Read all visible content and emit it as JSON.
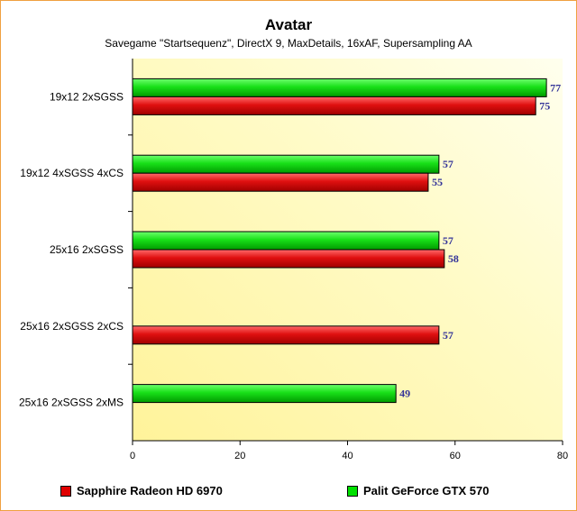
{
  "chart_data": {
    "type": "bar",
    "orientation": "horizontal",
    "title": "Avatar",
    "subtitle": "Savegame \"Startsequenz\", DirectX 9, MaxDetails, 16xAF, Supersampling AA",
    "categories": [
      "19x12 2xSGSS",
      "19x12 4xSGSS 4xCS",
      "25x16 2xSGSS",
      "25x16 2xSGSS 2xCS",
      "25x16 2xSGSS 2xMS"
    ],
    "series": [
      {
        "name": "Palit GeForce GTX 570",
        "color": "#00e000",
        "values": [
          77,
          57,
          57,
          null,
          49
        ]
      },
      {
        "name": "Sapphire Radeon HD 6970",
        "color": "#e00000",
        "values": [
          75,
          55,
          58,
          57,
          null
        ]
      }
    ],
    "xlim": [
      0,
      80
    ],
    "xticks": [
      0,
      20,
      40,
      60,
      80
    ],
    "grid": false,
    "legend_position": "bottom",
    "legend_order": [
      "Sapphire Radeon HD 6970",
      "Palit GeForce GTX 570"
    ]
  }
}
